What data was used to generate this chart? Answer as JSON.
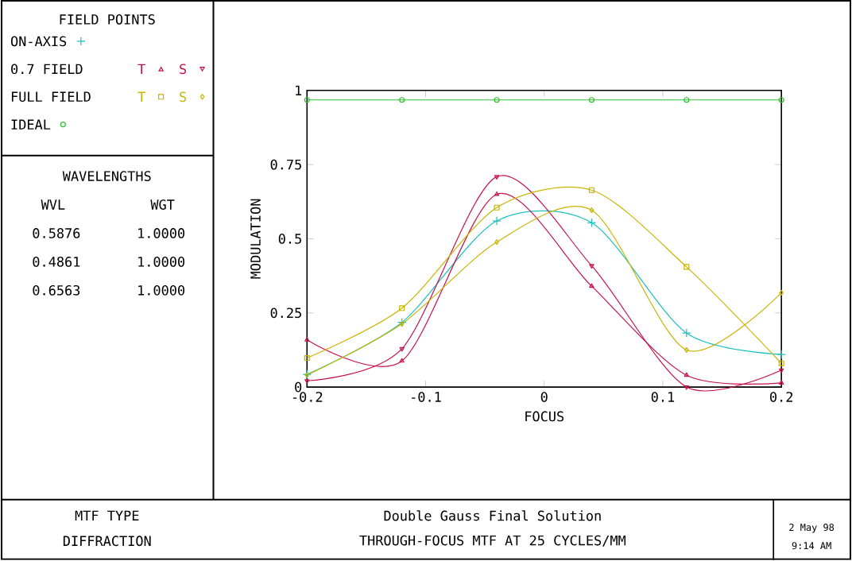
{
  "chart_data": {
    "type": "line",
    "title": "Double Gauss Final Solution",
    "subtitle": "THROUGH-FOCUS MTF AT 25 CYCLES/MM",
    "xlabel": "FOCUS",
    "ylabel": "MODULATION",
    "legend_title": "FIELD POINTS",
    "xlim": [
      -0.2,
      0.2
    ],
    "ylim": [
      0,
      1
    ],
    "xticks": [
      -0.2,
      -0.1,
      0,
      0.1,
      0.2
    ],
    "yticks": [
      0,
      0.25,
      0.5,
      0.75,
      1
    ],
    "grid": false,
    "legend": "left",
    "x": [
      -0.2,
      -0.12,
      -0.04,
      0.04,
      0.12,
      0.2
    ],
    "series": [
      {
        "name": "ON-AXIS",
        "color": "#20c0c0",
        "marker": "cross",
        "values": [
          0.043,
          0.218,
          0.56,
          0.554,
          0.182,
          0.11
        ]
      },
      {
        "name": "T",
        "color": "#c8104a",
        "marker": "triangle",
        "values": [
          0.159,
          0.088,
          0.65,
          0.34,
          0.04,
          0.014
        ]
      },
      {
        "name": "S",
        "color": "#c8104a",
        "marker": "triangle-down",
        "values": [
          0.021,
          0.129,
          0.709,
          0.409,
          0.0,
          0.057
        ]
      },
      {
        "name": "T",
        "color": "#c8b400",
        "marker": "square",
        "values": [
          0.098,
          0.266,
          0.605,
          0.664,
          0.405,
          0.08
        ]
      },
      {
        "name": "S",
        "color": "#c8b400",
        "marker": "diamond",
        "values": [
          0.04,
          0.213,
          0.489,
          0.596,
          0.125,
          0.318
        ]
      },
      {
        "name": "IDEAL",
        "color": "#30c030",
        "marker": "circle",
        "values": [
          0.968,
          0.968,
          0.968,
          0.968,
          0.968,
          0.968
        ]
      }
    ],
    "annotations": [
      "0.7 FIELD",
      "FULL FIELD",
      "WAVELENGTHS",
      "WVL",
      "WGT",
      "0.5876",
      "1.0000",
      "0.4861",
      "1.0000",
      "0.6563",
      "1.0000",
      "MTF TYPE",
      "DIFFRACTION",
      "2 May 98",
      "9:14 AM"
    ]
  }
}
